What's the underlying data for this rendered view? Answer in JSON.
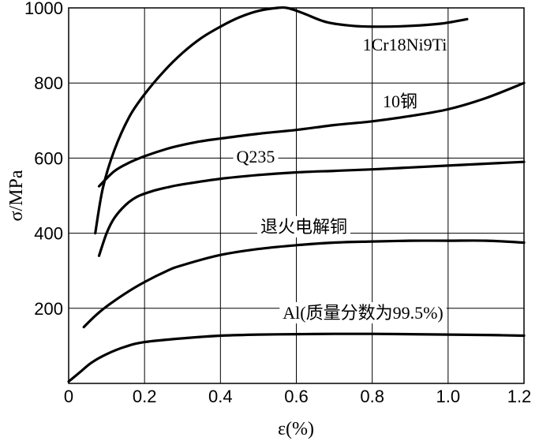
{
  "chart_data": {
    "type": "line",
    "xlabel": "ε(%)",
    "ylabel": "σ/MPa",
    "xlim": [
      0,
      1.2
    ],
    "ylim": [
      0,
      1000
    ],
    "x_ticks": [
      0,
      0.2,
      0.4,
      0.6,
      0.8,
      1.0,
      1.2
    ],
    "y_ticks": [
      200,
      400,
      600,
      800,
      1000
    ],
    "x_tick_labels": [
      "0",
      "0.2",
      "0.4",
      "0.6",
      "0.8",
      "1.0",
      "1.2"
    ],
    "y_tick_labels": [
      "200",
      "400",
      "600",
      "800",
      "1000"
    ],
    "grid": true,
    "series": [
      {
        "name": "1Cr18Ni9Ti",
        "x": [
          0.07,
          0.09,
          0.12,
          0.16,
          0.2,
          0.25,
          0.3,
          0.35,
          0.4,
          0.45,
          0.5,
          0.55,
          0.58,
          0.62,
          0.68,
          0.75,
          0.82,
          0.9,
          0.98,
          1.05
        ],
        "y": [
          400,
          520,
          620,
          710,
          770,
          830,
          880,
          920,
          950,
          975,
          992,
          1000,
          999,
          985,
          962,
          952,
          950,
          952,
          958,
          970
        ]
      },
      {
        "name": "10钢",
        "x": [
          0.08,
          0.12,
          0.16,
          0.2,
          0.26,
          0.3,
          0.35,
          0.4,
          0.5,
          0.6,
          0.7,
          0.8,
          0.9,
          1.0,
          1.1,
          1.2
        ],
        "y": [
          525,
          565,
          588,
          605,
          625,
          635,
          645,
          652,
          665,
          675,
          688,
          698,
          712,
          730,
          760,
          800
        ]
      },
      {
        "name": "Q235",
        "x": [
          0.08,
          0.1,
          0.12,
          0.15,
          0.18,
          0.22,
          0.26,
          0.3,
          0.4,
          0.5,
          0.6,
          0.7,
          0.8,
          0.9,
          1.0,
          1.1,
          1.2
        ],
        "y": [
          340,
          400,
          440,
          475,
          497,
          512,
          522,
          530,
          545,
          555,
          562,
          566,
          570,
          575,
          580,
          585,
          590
        ]
      },
      {
        "name": "退火电解铜",
        "x": [
          0.04,
          0.07,
          0.1,
          0.15,
          0.2,
          0.26,
          0.3,
          0.4,
          0.5,
          0.6,
          0.7,
          0.8,
          0.9,
          1.0,
          1.1,
          1.2
        ],
        "y": [
          150,
          180,
          205,
          240,
          270,
          300,
          315,
          342,
          358,
          368,
          375,
          378,
          380,
          380,
          380,
          375
        ]
      },
      {
        "name": "Al(质量分数为99.5%)",
        "x": [
          0,
          0.03,
          0.06,
          0.1,
          0.15,
          0.2,
          0.3,
          0.4,
          0.5,
          0.6,
          0.7,
          0.8,
          0.9,
          1.0,
          1.1,
          1.2
        ],
        "y": [
          5,
          30,
          55,
          78,
          98,
          110,
          120,
          127,
          130,
          131,
          132,
          132,
          131,
          130,
          129,
          127
        ]
      }
    ]
  }
}
